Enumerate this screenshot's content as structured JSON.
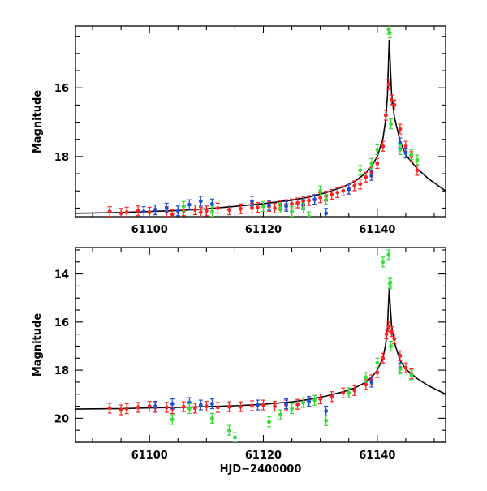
{
  "chart_data": [
    {
      "type": "scatter",
      "panel": "top",
      "xlabel": "",
      "ylabel": "Magnitude",
      "xlim": [
        61087,
        61152
      ],
      "ylim": [
        19.75,
        14.2
      ],
      "x_ticks": [
        61100,
        61120,
        61140
      ],
      "x_tick_labels": [
        "61100",
        "61120",
        "61140"
      ],
      "y_ticks": [
        16,
        18
      ],
      "y_tick_labels": [
        "16",
        "18"
      ],
      "grid": false,
      "series": [
        {
          "color": "#ff2020",
          "points": [
            [
              61093,
              19.6
            ],
            [
              61095,
              19.65
            ],
            [
              61096,
              19.62
            ],
            [
              61098,
              19.58
            ],
            [
              61100,
              19.62
            ],
            [
              61101,
              19.55
            ],
            [
              61103,
              19.6
            ],
            [
              61104,
              19.68
            ],
            [
              61106,
              19.58
            ],
            [
              61108,
              19.55
            ],
            [
              61109,
              19.62
            ],
            [
              61110,
              19.58
            ],
            [
              61112,
              19.5
            ],
            [
              61114,
              19.55
            ],
            [
              61116,
              19.52
            ],
            [
              61118,
              19.5
            ],
            [
              61119,
              19.48
            ],
            [
              61121,
              19.45
            ],
            [
              61122,
              19.5
            ],
            [
              61123,
              19.42
            ],
            [
              61124,
              19.4
            ],
            [
              61125,
              19.38
            ],
            [
              61126,
              19.35
            ],
            [
              61127,
              19.3
            ],
            [
              61128,
              19.28
            ],
            [
              61129,
              19.25
            ],
            [
              61130,
              19.2
            ],
            [
              61131,
              19.15
            ],
            [
              61132,
              19.1
            ],
            [
              61133,
              19.05
            ],
            [
              61134,
              19.0
            ],
            [
              61135,
              18.95
            ],
            [
              61136,
              18.85
            ],
            [
              61137,
              18.8
            ],
            [
              61138,
              18.6
            ],
            [
              61139,
              18.45
            ],
            [
              61140,
              18.2
            ],
            [
              61141,
              17.7
            ],
            [
              61141.5,
              16.8
            ],
            [
              61142,
              15.9
            ],
            [
              61142.5,
              16.35
            ],
            [
              61143,
              16.5
            ],
            [
              61144,
              17.2
            ],
            [
              61145,
              17.7
            ],
            [
              61146,
              18.0
            ],
            [
              61147,
              18.4
            ]
          ]
        },
        {
          "color": "#1a4fd8",
          "points": [
            [
              61099,
              19.6
            ],
            [
              61101,
              19.55
            ],
            [
              61103,
              19.5
            ],
            [
              61105,
              19.58
            ],
            [
              61107,
              19.4
            ],
            [
              61109,
              19.3
            ],
            [
              61111,
              19.38
            ],
            [
              61118,
              19.3
            ],
            [
              61121,
              19.42
            ],
            [
              61124,
              19.45
            ],
            [
              61127,
              19.4
            ],
            [
              61129,
              19.25
            ],
            [
              61131,
              19.65
            ],
            [
              61135,
              18.95
            ],
            [
              61139,
              18.55
            ],
            [
              61144,
              17.6
            ],
            [
              61145,
              17.9
            ]
          ]
        },
        {
          "color": "#33dd33",
          "points": [
            [
              61106,
              19.45
            ],
            [
              61111,
              19.6
            ],
            [
              61120,
              19.45
            ],
            [
              61123,
              19.5
            ],
            [
              61125,
              19.6
            ],
            [
              61127,
              19.5
            ],
            [
              61128,
              19.75
            ],
            [
              61130,
              19.0
            ],
            [
              61131,
              19.25
            ],
            [
              61137,
              18.4
            ],
            [
              61139,
              18.2
            ],
            [
              61140,
              17.8
            ],
            [
              61142,
              14.3
            ],
            [
              61142.2,
              14.4
            ],
            [
              61142.4,
              17.05
            ],
            [
              61144,
              17.8
            ],
            [
              61146,
              17.95
            ],
            [
              61147,
              18.1
            ]
          ]
        }
      ],
      "model_curve": {
        "color": "#000000",
        "points": [
          [
            61087,
            19.65
          ],
          [
            61095,
            19.63
          ],
          [
            61100,
            19.6
          ],
          [
            61105,
            19.57
          ],
          [
            61110,
            19.52
          ],
          [
            61115,
            19.45
          ],
          [
            61120,
            19.37
          ],
          [
            61125,
            19.27
          ],
          [
            61128,
            19.18
          ],
          [
            61131,
            19.05
          ],
          [
            61134,
            18.88
          ],
          [
            61136,
            18.73
          ],
          [
            61138,
            18.48
          ],
          [
            61139,
            18.29
          ],
          [
            61140,
            17.99
          ],
          [
            61141,
            17.48
          ],
          [
            61141.5,
            16.9
          ],
          [
            61141.8,
            16.2
          ],
          [
            61142.1,
            14.6
          ],
          [
            61142.5,
            16.15
          ],
          [
            61143,
            16.85
          ],
          [
            61144,
            17.55
          ],
          [
            61145,
            17.95
          ],
          [
            61147,
            18.35
          ],
          [
            61149,
            18.65
          ],
          [
            61152,
            19.0
          ]
        ]
      }
    },
    {
      "type": "scatter",
      "panel": "bottom",
      "xlabel": "HJD−2400000",
      "ylabel": "Magnitude",
      "xlim": [
        61087,
        61152
      ],
      "ylim": [
        21.0,
        12.9
      ],
      "x_ticks": [
        61100,
        61120,
        61140
      ],
      "x_tick_labels": [
        "61100",
        "61120",
        "61140"
      ],
      "y_ticks": [
        14,
        16,
        18,
        20
      ],
      "y_tick_labels": [
        "14",
        "16",
        "18",
        "20"
      ],
      "grid": false,
      "series": [
        {
          "color": "#ff2020",
          "points": [
            [
              61093,
              19.58
            ],
            [
              61095,
              19.65
            ],
            [
              61096,
              19.6
            ],
            [
              61098,
              19.55
            ],
            [
              61100,
              19.5
            ],
            [
              61101,
              19.55
            ],
            [
              61103,
              19.55
            ],
            [
              61104,
              19.6
            ],
            [
              61106,
              19.52
            ],
            [
              61108,
              19.58
            ],
            [
              61110,
              19.5
            ],
            [
              61112,
              19.55
            ],
            [
              61114,
              19.52
            ],
            [
              61116,
              19.52
            ],
            [
              61118,
              19.48
            ],
            [
              61120,
              19.45
            ],
            [
              61122,
              19.5
            ],
            [
              61124,
              19.45
            ],
            [
              61126,
              19.42
            ],
            [
              61128,
              19.3
            ],
            [
              61130,
              19.2
            ],
            [
              61132,
              19.1
            ],
            [
              61134,
              18.95
            ],
            [
              61136,
              18.85
            ],
            [
              61138,
              18.6
            ],
            [
              61139,
              18.4
            ],
            [
              61140,
              18.1
            ],
            [
              61141,
              17.5
            ],
            [
              61141.6,
              16.5
            ],
            [
              61142,
              16.2
            ],
            [
              61142.5,
              16.4
            ],
            [
              61143,
              16.7
            ],
            [
              61144,
              17.4
            ],
            [
              61145,
              17.9
            ],
            [
              61146,
              18.15
            ]
          ]
        },
        {
          "color": "#1a4fd8",
          "points": [
            [
              61101,
              19.5
            ],
            [
              61104,
              19.4
            ],
            [
              61107,
              19.35
            ],
            [
              61109,
              19.45
            ],
            [
              61111,
              19.4
            ],
            [
              61119,
              19.45
            ],
            [
              61124,
              19.4
            ],
            [
              61128,
              19.3
            ],
            [
              61131,
              19.7
            ],
            [
              61135,
              18.95
            ],
            [
              61139,
              18.5
            ],
            [
              61144,
              17.9
            ]
          ]
        },
        {
          "color": "#33dd33",
          "points": [
            [
              61104,
              20.05
            ],
            [
              61107,
              19.6
            ],
            [
              61111,
              20.0
            ],
            [
              61114,
              20.5
            ],
            [
              61115,
              20.8
            ],
            [
              61121,
              20.15
            ],
            [
              61123,
              19.85
            ],
            [
              61125,
              19.6
            ],
            [
              61127,
              19.35
            ],
            [
              61129,
              19.25
            ],
            [
              61131,
              20.1
            ],
            [
              61135,
              18.95
            ],
            [
              61138,
              18.3
            ],
            [
              61140,
              17.7
            ],
            [
              61141,
              13.5
            ],
            [
              61142,
              13.2
            ],
            [
              61142.2,
              14.4
            ],
            [
              61142.3,
              14.35
            ],
            [
              61142.4,
              17.0
            ],
            [
              61144,
              17.95
            ],
            [
              61146,
              18.2
            ]
          ]
        }
      ],
      "model_curve": {
        "color": "#000000",
        "points": [
          [
            61087,
            19.62
          ],
          [
            61095,
            19.6
          ],
          [
            61100,
            19.57
          ],
          [
            61105,
            19.55
          ],
          [
            61110,
            19.52
          ],
          [
            61115,
            19.48
          ],
          [
            61120,
            19.42
          ],
          [
            61125,
            19.32
          ],
          [
            61128,
            19.22
          ],
          [
            61131,
            19.08
          ],
          [
            61134,
            18.9
          ],
          [
            61136,
            18.75
          ],
          [
            61138,
            18.5
          ],
          [
            61139,
            18.3
          ],
          [
            61140,
            18.0
          ],
          [
            61141,
            17.5
          ],
          [
            61141.5,
            16.9
          ],
          [
            61141.8,
            16.2
          ],
          [
            61142.1,
            14.6
          ],
          [
            61142.5,
            16.15
          ],
          [
            61143,
            16.85
          ],
          [
            61144,
            17.6
          ],
          [
            61145,
            17.95
          ],
          [
            61147,
            18.35
          ],
          [
            61149,
            18.65
          ],
          [
            61152,
            19.0
          ]
        ]
      }
    }
  ]
}
